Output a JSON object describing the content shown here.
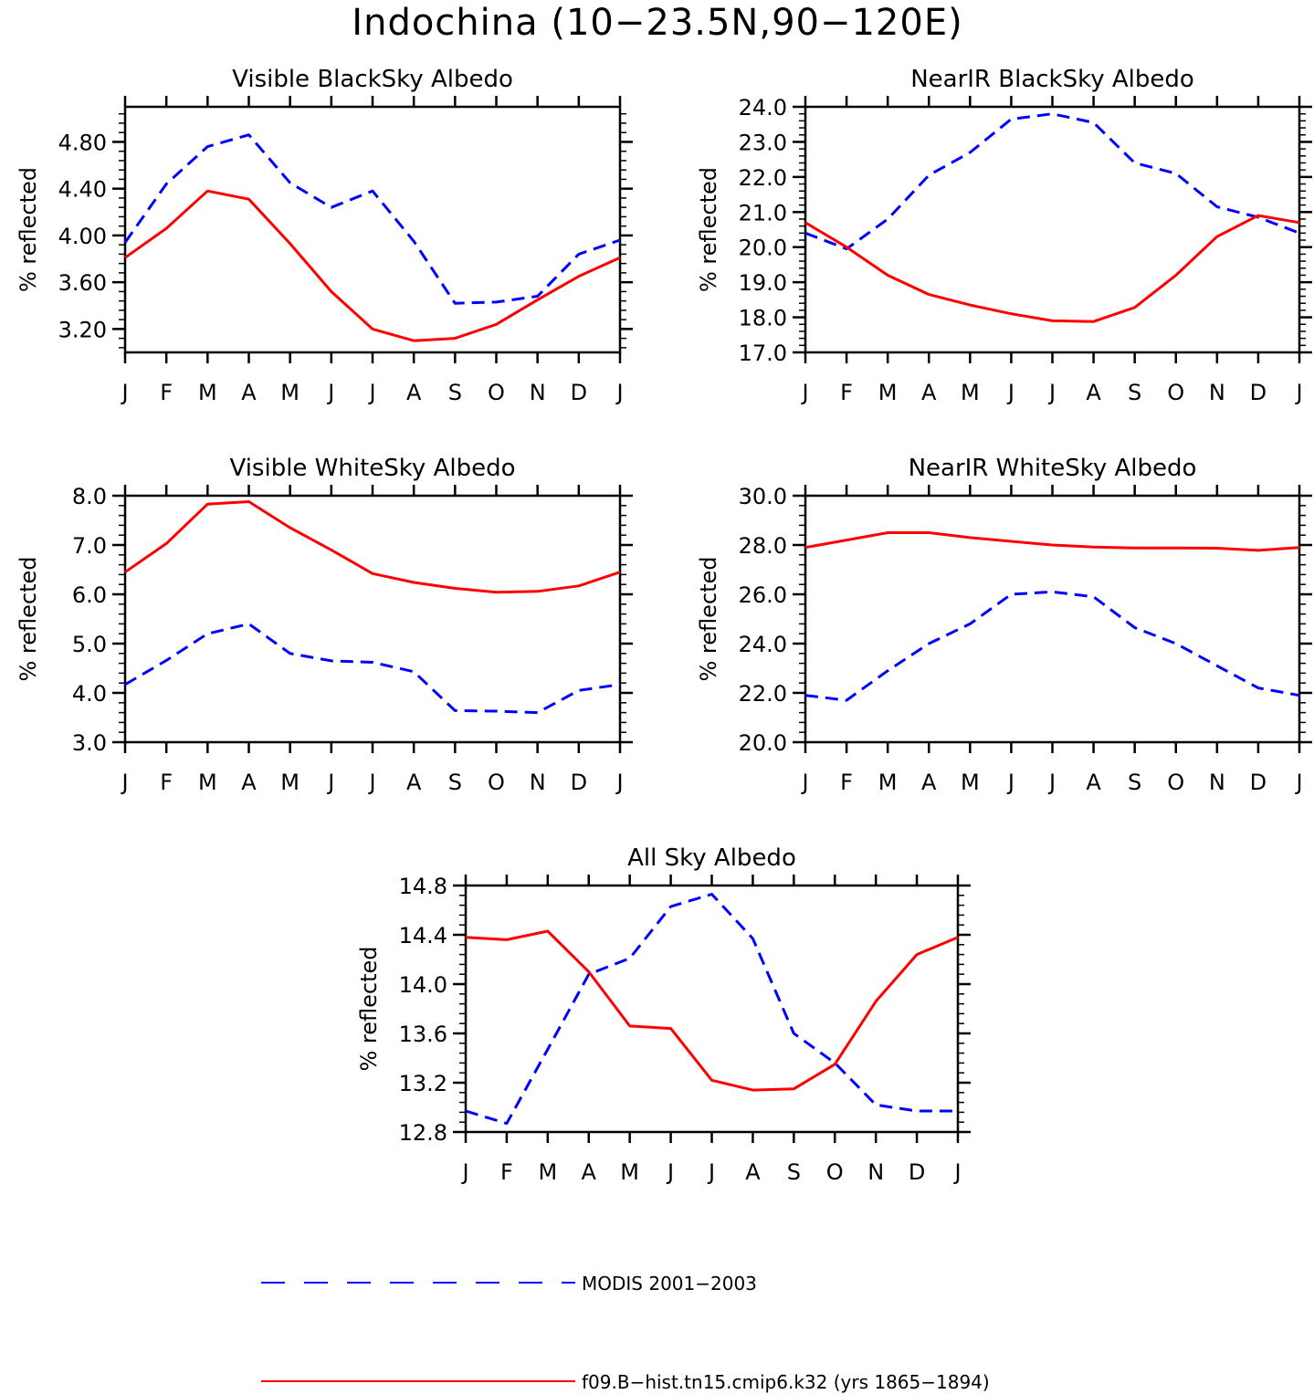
{
  "title": "Indochina (10−23.5N,90−120E)",
  "colors": {
    "model": "#ff0000",
    "obs": "#0000ff"
  },
  "legend": {
    "obs_label": "MODIS 2001−2003",
    "model_label": "f09.B−hist.tn15.cmip6.k32 (yrs 1865−1894)"
  },
  "chart_data": [
    {
      "type": "line",
      "title": "Visible BlackSky Albedo",
      "ylabel": "% reflected",
      "categories": [
        "J",
        "F",
        "M",
        "A",
        "M",
        "J",
        "J",
        "A",
        "S",
        "O",
        "N",
        "D",
        "J"
      ],
      "ylim": [
        3.0,
        5.1
      ],
      "yticks": [
        "3.20",
        "3.60",
        "4.00",
        "4.40",
        "4.80"
      ],
      "series": [
        {
          "name": "MODIS 2001−2003",
          "style": "dashed",
          "values": [
            3.94,
            4.44,
            4.76,
            4.86,
            4.45,
            4.24,
            4.38,
            3.95,
            3.42,
            3.43,
            3.48,
            3.84,
            3.96
          ]
        },
        {
          "name": "f09.B−hist.tn15.cmip6.k32 (yrs 1865−1894)",
          "style": "solid",
          "values": [
            3.81,
            4.06,
            4.38,
            4.31,
            3.93,
            3.52,
            3.2,
            3.1,
            3.12,
            3.24,
            3.45,
            3.65,
            3.81
          ]
        }
      ]
    },
    {
      "type": "line",
      "title": "NearIR BlackSky Albedo",
      "ylabel": "% reflected",
      "categories": [
        "J",
        "F",
        "M",
        "A",
        "M",
        "J",
        "J",
        "A",
        "S",
        "O",
        "N",
        "D",
        "J"
      ],
      "ylim": [
        17.0,
        24.0
      ],
      "yticks": [
        "17.0",
        "18.0",
        "19.0",
        "20.0",
        "21.0",
        "22.0",
        "23.0",
        "24.0"
      ],
      "series": [
        {
          "name": "MODIS 2001−2003",
          "style": "dashed",
          "values": [
            20.4,
            19.95,
            20.8,
            22.05,
            22.7,
            23.65,
            23.8,
            23.55,
            22.4,
            22.1,
            21.15,
            20.85,
            20.4
          ]
        },
        {
          "name": "f09.B−hist.tn15.cmip6.k32 (yrs 1865−1894)",
          "style": "solid",
          "values": [
            20.7,
            20.0,
            19.2,
            18.65,
            18.35,
            18.1,
            17.9,
            17.88,
            18.28,
            19.2,
            20.3,
            20.9,
            20.7
          ]
        }
      ]
    },
    {
      "type": "line",
      "title": "Visible WhiteSky Albedo",
      "ylabel": "% reflected",
      "categories": [
        "J",
        "F",
        "M",
        "A",
        "M",
        "J",
        "J",
        "A",
        "S",
        "O",
        "N",
        "D",
        "J"
      ],
      "ylim": [
        3.0,
        8.0
      ],
      "yticks": [
        "3.0",
        "4.0",
        "5.0",
        "6.0",
        "7.0",
        "8.0"
      ],
      "series": [
        {
          "name": "MODIS 2001−2003",
          "style": "dashed",
          "values": [
            4.17,
            4.66,
            5.2,
            5.4,
            4.8,
            4.65,
            4.62,
            4.43,
            3.64,
            3.63,
            3.6,
            4.05,
            4.17
          ]
        },
        {
          "name": "f09.B−hist.tn15.cmip6.k32 (yrs 1865−1894)",
          "style": "solid",
          "values": [
            6.45,
            7.03,
            7.83,
            7.88,
            7.35,
            6.9,
            6.42,
            6.24,
            6.12,
            6.04,
            6.06,
            6.17,
            6.45
          ]
        }
      ]
    },
    {
      "type": "line",
      "title": "NearIR WhiteSky Albedo",
      "ylabel": "% reflected",
      "categories": [
        "J",
        "F",
        "M",
        "A",
        "M",
        "J",
        "J",
        "A",
        "S",
        "O",
        "N",
        "D",
        "J"
      ],
      "ylim": [
        20.0,
        30.0
      ],
      "yticks": [
        "20.0",
        "22.0",
        "24.0",
        "26.0",
        "28.0",
        "30.0"
      ],
      "series": [
        {
          "name": "MODIS 2001−2003",
          "style": "dashed",
          "values": [
            21.9,
            21.7,
            22.9,
            24.0,
            24.8,
            26.0,
            26.1,
            25.9,
            24.65,
            24.0,
            23.1,
            22.2,
            21.9
          ]
        },
        {
          "name": "f09.B−hist.tn15.cmip6.k32 (yrs 1865−1894)",
          "style": "solid",
          "values": [
            27.9,
            28.2,
            28.5,
            28.5,
            28.3,
            28.15,
            28.0,
            27.92,
            27.88,
            27.88,
            27.87,
            27.78,
            27.9
          ]
        }
      ]
    },
    {
      "type": "line",
      "title": "All Sky Albedo",
      "ylabel": "% reflected",
      "categories": [
        "J",
        "F",
        "M",
        "A",
        "M",
        "J",
        "J",
        "A",
        "S",
        "O",
        "N",
        "D",
        "J"
      ],
      "ylim": [
        12.8,
        14.8
      ],
      "yticks": [
        "12.8",
        "13.2",
        "13.6",
        "14.0",
        "14.4",
        "14.8"
      ],
      "series": [
        {
          "name": "MODIS 2001−2003",
          "style": "dashed",
          "values": [
            12.97,
            12.87,
            13.47,
            14.08,
            14.21,
            14.63,
            14.73,
            14.37,
            13.6,
            13.36,
            13.02,
            12.97,
            12.97
          ]
        },
        {
          "name": "f09.B−hist.tn15.cmip6.k32 (yrs 1865−1894)",
          "style": "solid",
          "values": [
            14.38,
            14.36,
            14.43,
            14.1,
            13.66,
            13.64,
            13.22,
            13.14,
            13.15,
            13.35,
            13.86,
            14.24,
            14.38
          ]
        }
      ]
    }
  ]
}
